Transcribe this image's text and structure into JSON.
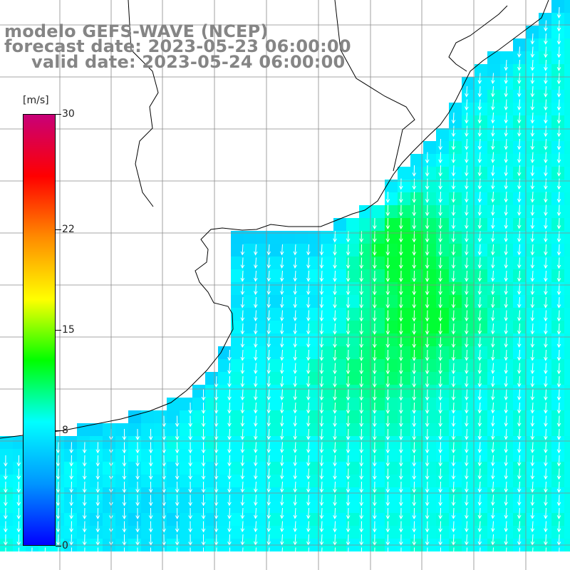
{
  "title": {
    "line1": "modelo GEFS-WAVE (NCEP)",
    "line2": "forecast date: 2023-05-23 06:00:00",
    "line3": "valid date: 2023-05-24 06:00:00"
  },
  "colorbar": {
    "unit": "[m/s]",
    "min": 0,
    "max": 30,
    "ticks": [
      {
        "value": 30,
        "label": "30"
      },
      {
        "value": 22,
        "label": "22"
      },
      {
        "value": 15,
        "label": "15"
      },
      {
        "value": 8,
        "label": "8"
      },
      {
        "value": 0,
        "label": "0"
      }
    ],
    "stops": [
      "#0000ff",
      "#0096ff",
      "#00ffff",
      "#00ff00",
      "#ffff00",
      "#ff8c00",
      "#ff0000",
      "#c80078"
    ]
  },
  "map": {
    "land_color": "#ffffff",
    "coast_color": "#000000",
    "grid_color": "#8a8a8a",
    "arrow_color": "#ffffff"
  },
  "wind_field": {
    "description_units": "m/s",
    "typical_speed_open_ocean": 10,
    "max_speed_core": 12,
    "coastal_min_speed": 6,
    "dominant_direction": "from north-northeast (arrows pointing south-southwest)"
  }
}
